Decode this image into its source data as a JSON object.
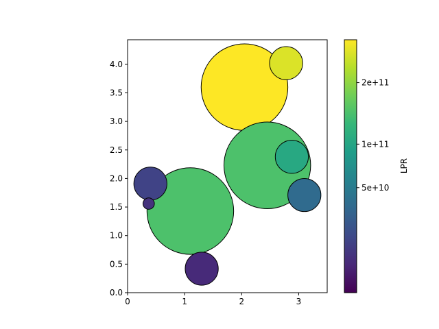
{
  "chart_data": {
    "type": "scatter",
    "title": "",
    "xlabel": "",
    "ylabel": "",
    "xlim": [
      0,
      3.5
    ],
    "ylim": [
      0,
      4.43
    ],
    "x_ticks": [
      0,
      1,
      2,
      3
    ],
    "x_tick_labels": [
      "0",
      "1",
      "2",
      "3"
    ],
    "y_ticks": [
      0.0,
      0.5,
      1.0,
      1.5,
      2.0,
      2.5,
      3.0,
      3.5,
      4.0
    ],
    "y_tick_labels": [
      "0.0",
      "0.5",
      "1.0",
      "1.5",
      "2.0",
      "2.5",
      "3.0",
      "3.5",
      "4.0"
    ],
    "grid": false,
    "colormap": "viridis",
    "marker_edge_color": "#000000",
    "points": [
      {
        "x": 2.05,
        "y": 3.6,
        "size": 0.76,
        "lpr": 290000000000
      },
      {
        "x": 2.45,
        "y": 2.23,
        "size": 0.76,
        "lpr": 148000000000
      },
      {
        "x": 1.1,
        "y": 1.43,
        "size": 0.76,
        "lpr": 148000000000
      },
      {
        "x": 2.78,
        "y": 4.02,
        "size": 0.29,
        "lpr": 260000000000
      },
      {
        "x": 2.88,
        "y": 2.38,
        "size": 0.29,
        "lpr": 105000000000
      },
      {
        "x": 3.1,
        "y": 1.71,
        "size": 0.29,
        "lpr": 35000000000
      },
      {
        "x": 0.4,
        "y": 1.91,
        "size": 0.29,
        "lpr": 12000000000
      },
      {
        "x": 1.3,
        "y": 0.42,
        "size": 0.29,
        "lpr": 4000000000
      },
      {
        "x": 0.37,
        "y": 1.56,
        "size": 0.1,
        "lpr": 6000000000
      }
    ],
    "colorbar": {
      "label": "LPR",
      "min": 0,
      "max": 290000000000,
      "ticks": [
        50000000000,
        100000000000,
        200000000000
      ],
      "tick_labels": [
        "5e+10",
        "1e+11",
        "2e+11"
      ],
      "scale": "power"
    }
  }
}
